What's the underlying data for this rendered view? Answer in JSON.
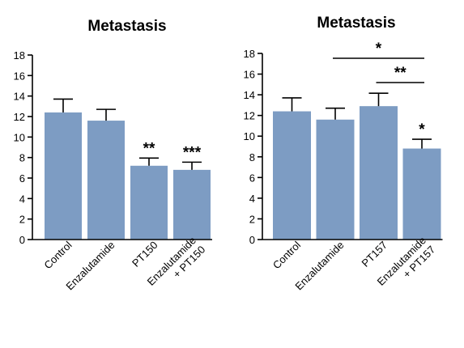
{
  "bar_color": "#7D9CC3",
  "chart_data": [
    {
      "type": "bar",
      "title": "Metastasis",
      "xlabel": "",
      "ylabel": "",
      "ylim": [
        0,
        18
      ],
      "yticks": [
        "0",
        "2",
        "4",
        "6",
        "8",
        "10",
        "12",
        "14",
        "16",
        "18"
      ],
      "categories": [
        "Control",
        "Enzalutamide",
        "PT150",
        "Enzalutamide + PT150"
      ],
      "category_lines": [
        [
          "Control"
        ],
        [
          "Enzalutamide"
        ],
        [
          "PT150"
        ],
        [
          "Enzalutamide",
          "+ PT150"
        ]
      ],
      "values": [
        12.4,
        11.6,
        7.2,
        6.8
      ],
      "errors": [
        1.3,
        1.1,
        0.75,
        0.75
      ],
      "annotations": [
        "",
        "",
        "**",
        "***"
      ],
      "brackets": []
    },
    {
      "type": "bar",
      "title": "Metastasis",
      "xlabel": "",
      "ylabel": "",
      "ylim": [
        0,
        18
      ],
      "yticks": [
        "0",
        "2",
        "4",
        "6",
        "8",
        "10",
        "12",
        "14",
        "16",
        "18"
      ],
      "categories": [
        "Control",
        "Enzalutamide",
        "PT157",
        "Enzalutamide + PT157"
      ],
      "category_lines": [
        [
          "Control"
        ],
        [
          "Enzalutamide"
        ],
        [
          "PT157"
        ],
        [
          "Enzalutamide",
          "+ PT157"
        ]
      ],
      "values": [
        12.4,
        11.6,
        12.9,
        8.8
      ],
      "errors": [
        1.3,
        1.1,
        1.25,
        0.9
      ],
      "annotations": [
        "",
        "",
        "",
        "*"
      ],
      "brackets": [
        {
          "from": 1,
          "to": 3,
          "label": "*"
        },
        {
          "from": 2,
          "to": 3,
          "label": "**"
        }
      ]
    }
  ]
}
